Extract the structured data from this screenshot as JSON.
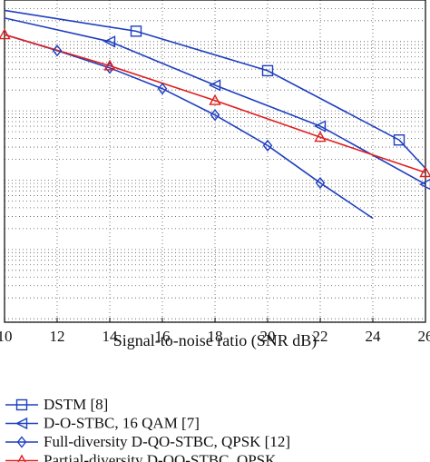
{
  "chart_data": {
    "type": "line",
    "title": "",
    "xlabel": "Signal-to-noise ratio (SNR dB)",
    "ylabel": "",
    "x_ticks": [
      10,
      12,
      14,
      16,
      18,
      20,
      22,
      24,
      26
    ],
    "x_tick_labels": [
      "10",
      "12",
      "14",
      "16",
      "18",
      "20",
      "22",
      "24",
      "26"
    ],
    "xlim": [
      10,
      26
    ],
    "yscale": "log",
    "ylim_log10": [
      -4.05,
      0.6
    ],
    "grid": true,
    "legend_position": "bottom-left, below plot",
    "series": [
      {
        "name": "DSTM [8]",
        "color": "#1f3fbf",
        "marker": "square",
        "line_x": [
          10,
          15,
          20,
          25,
          26
        ],
        "line_log10_y": [
          0.45,
          0.15,
          -0.42,
          -1.42,
          -1.83
        ],
        "marker_x": [
          15,
          20,
          25
        ],
        "marker_log10_y": [
          0.15,
          -0.42,
          -1.42
        ]
      },
      {
        "name": "D-O-STBC, 16 QAM [7]",
        "color": "#1f3fbf",
        "marker": "triangle-left",
        "line_x": [
          10,
          14,
          18,
          22,
          26
        ],
        "line_log10_y": [
          0.34,
          0.0,
          -0.63,
          -1.22,
          -2.06
        ],
        "marker_x": [
          14,
          18,
          22,
          26
        ],
        "marker_log10_y": [
          0.0,
          -0.63,
          -1.22,
          -2.06
        ]
      },
      {
        "name": "Full-diversity D-QO-STBC, QPSK [12]",
        "color": "#1f3fbf",
        "marker": "diamond",
        "line_x": [
          10,
          12,
          14,
          16,
          18,
          20,
          22,
          24
        ],
        "line_log10_y": [
          0.1,
          -0.13,
          -0.38,
          -0.68,
          -1.06,
          -1.5,
          -2.04,
          -2.55
        ],
        "marker_x": [
          12,
          14,
          16,
          18,
          20,
          22
        ],
        "marker_log10_y": [
          -0.13,
          -0.38,
          -0.68,
          -1.06,
          -1.5,
          -2.04
        ]
      },
      {
        "name": "Partial-diversity D-QO-STBC, QPSK",
        "color": "#e02020",
        "marker": "triangle-up",
        "line_x": [
          10,
          14,
          18,
          22,
          26
        ],
        "line_log10_y": [
          0.1,
          -0.35,
          -0.85,
          -1.38,
          -1.89
        ],
        "marker_x": [
          10,
          14,
          18,
          22,
          26
        ],
        "marker_log10_y": [
          0.1,
          -0.35,
          -0.85,
          -1.38,
          -1.89
        ]
      }
    ]
  }
}
